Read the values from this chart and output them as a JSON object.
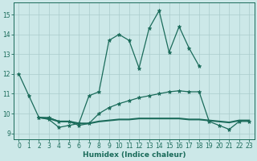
{
  "xlabel": "Humidex (Indice chaleur)",
  "background_color": "#cce8e8",
  "grid_color": "#aacccc",
  "line_color": "#1a6b5a",
  "xlim": [
    -0.5,
    23.5
  ],
  "ylim": [
    8.7,
    15.6
  ],
  "yticks": [
    9,
    10,
    11,
    12,
    13,
    14,
    15
  ],
  "xticks": [
    0,
    1,
    2,
    3,
    4,
    5,
    6,
    7,
    8,
    9,
    10,
    11,
    12,
    13,
    14,
    15,
    16,
    17,
    18,
    19,
    20,
    21,
    22,
    23
  ],
  "series1_x": [
    0,
    1,
    2,
    3,
    4,
    5,
    6,
    7,
    8,
    9,
    10,
    11,
    12,
    13,
    14,
    15,
    16,
    17,
    18
  ],
  "series1_y": [
    12.0,
    10.9,
    9.8,
    9.7,
    9.3,
    9.4,
    9.5,
    10.9,
    11.1,
    13.7,
    14.0,
    13.7,
    12.3,
    14.3,
    15.2,
    13.1,
    14.4,
    13.3,
    12.4
  ],
  "series2_x": [
    2,
    3,
    4,
    5,
    6,
    7,
    8,
    9,
    10,
    11,
    12,
    13,
    14,
    15,
    16,
    17,
    18,
    19,
    20,
    21,
    22,
    23
  ],
  "series2_y": [
    9.8,
    9.8,
    9.6,
    9.6,
    9.4,
    9.5,
    10.0,
    10.3,
    10.5,
    10.65,
    10.8,
    10.9,
    11.0,
    11.1,
    11.15,
    11.1,
    11.1,
    9.6,
    9.4,
    9.2,
    9.6,
    9.6
  ],
  "series3_x": [
    2,
    3,
    4,
    5,
    6,
    7,
    8,
    9,
    10,
    11,
    12,
    13,
    14,
    15,
    16,
    17,
    18,
    19,
    20,
    21,
    22,
    23
  ],
  "series3_y": [
    9.8,
    9.75,
    9.6,
    9.6,
    9.5,
    9.5,
    9.6,
    9.65,
    9.7,
    9.7,
    9.75,
    9.75,
    9.75,
    9.75,
    9.75,
    9.7,
    9.7,
    9.65,
    9.6,
    9.55,
    9.65,
    9.65
  ]
}
